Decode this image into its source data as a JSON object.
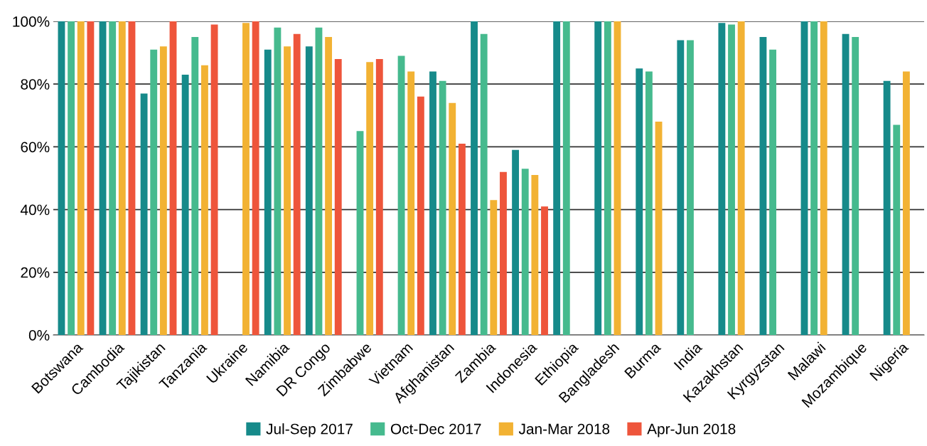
{
  "chart_data": {
    "type": "bar",
    "categories": [
      "Botswana",
      "Cambodia",
      "Tajikistan",
      "Tanzania",
      "Ukraine",
      "Namibia",
      "DR Congo",
      "Zimbabwe",
      "Vietnam",
      "Afghanistan",
      "Zambia",
      "Indonesia",
      "Ethiopia",
      "Bangladesh",
      "Burma",
      "India",
      "Kazakhstan",
      "Kyrgyzstan",
      "Malawi",
      "Mozambique",
      "Nigeria"
    ],
    "series": [
      {
        "name": "Jul-Sep 2017",
        "color": "#168a8a",
        "values": [
          100,
          100,
          77,
          83,
          null,
          91,
          92,
          null,
          null,
          84,
          100,
          59,
          100,
          100,
          85,
          94,
          99.5,
          95,
          100,
          96,
          81
        ]
      },
      {
        "name": "Oct-Dec 2017",
        "color": "#46ba8e",
        "values": [
          100,
          100,
          91,
          95,
          null,
          98,
          98,
          65,
          89,
          81,
          96,
          53,
          100,
          100,
          84,
          94,
          99,
          91,
          100,
          95,
          67
        ]
      },
      {
        "name": "Jan-Mar 2018",
        "color": "#f2b233",
        "values": [
          100,
          100,
          92,
          86,
          99.5,
          92,
          95,
          87,
          84,
          74,
          43,
          51,
          null,
          100,
          68,
          null,
          100,
          null,
          100,
          null,
          84
        ]
      },
      {
        "name": "Apr-Jun 2018",
        "color": "#ee553b",
        "values": [
          100,
          100,
          100,
          99,
          100,
          96,
          88,
          88,
          76,
          61,
          52,
          41,
          null,
          null,
          null,
          null,
          null,
          null,
          null,
          null,
          null
        ]
      }
    ],
    "ylim": [
      0,
      100
    ],
    "yticks": [
      {
        "value": 0,
        "label": "0%"
      },
      {
        "value": 20,
        "label": "20%"
      },
      {
        "value": 40,
        "label": "40%"
      },
      {
        "value": 60,
        "label": "60%"
      },
      {
        "value": 80,
        "label": "80%"
      },
      {
        "value": 100,
        "label": "100%"
      }
    ],
    "grid": "y",
    "legend": "bottom"
  }
}
